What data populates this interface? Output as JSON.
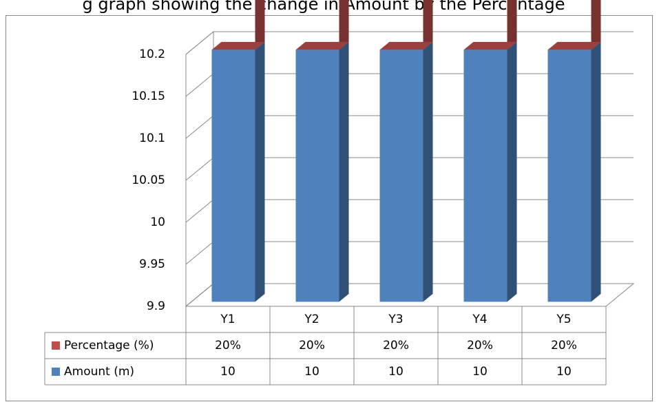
{
  "chart_data": {
    "type": "bar3d_stacked",
    "title": "g graph showing the change in Amount by the Percentage",
    "categories": [
      "Y1",
      "Y2",
      "Y3",
      "Y4",
      "Y5"
    ],
    "series": [
      {
        "name": "Amount (m)",
        "color": "#4f81bd",
        "values": [
          10,
          10,
          10,
          10,
          10
        ]
      },
      {
        "name": "Percentage (%)",
        "color": "#c0504d",
        "values": [
          0.2,
          0.2,
          0.2,
          0.2,
          0.2
        ],
        "value_labels": [
          "20%",
          "20%",
          "20%",
          "20%",
          "20%"
        ]
      }
    ],
    "ylim": [
      9.9,
      10.2
    ],
    "yticks": [
      9.9,
      9.95,
      10,
      10.05,
      10.1,
      10.15,
      10.2
    ],
    "grid": true,
    "data_table": true
  }
}
